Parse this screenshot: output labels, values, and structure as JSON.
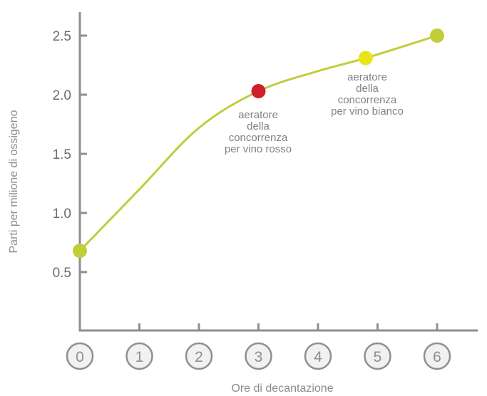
{
  "chart_data": {
    "type": "line",
    "xlabel": "Ore di decantazione",
    "ylabel": "Parti per milione di ossigeno",
    "xlim": [
      0,
      6
    ],
    "ylim": [
      0,
      2.5
    ],
    "x_ticks": [
      "0",
      "1",
      "2",
      "3",
      "4",
      "5",
      "6"
    ],
    "y_ticks": [
      "0.5",
      "1.0",
      "1.5",
      "2.0",
      "2.5"
    ],
    "grid": false,
    "line_color": "#c2cd3a",
    "series": [
      {
        "x": [
          0,
          1,
          2,
          3,
          4,
          4.8,
          6
        ],
        "values": [
          0.68,
          1.2,
          1.72,
          2.03,
          2.2,
          2.31,
          2.5
        ]
      }
    ],
    "points": [
      {
        "x": 0,
        "y": 0.68,
        "color": "#c2cd3a",
        "label": ""
      },
      {
        "x": 3,
        "y": 2.03,
        "color": "#d01f2d",
        "label": "aeratore della concorrenza per vino rosso"
      },
      {
        "x": 4.8,
        "y": 2.31,
        "color": "#e8e41b",
        "label": "aeratore della concorrenza per vino bianco"
      },
      {
        "x": 6,
        "y": 2.5,
        "color": "#c2cd3a",
        "label": ""
      }
    ],
    "annotations": [
      {
        "lines": [
          "aeratore",
          "della",
          "concorrenza",
          "per vino rosso"
        ]
      },
      {
        "lines": [
          "aeratore",
          "della",
          "concorrenza",
          "per vino bianco"
        ]
      }
    ]
  }
}
